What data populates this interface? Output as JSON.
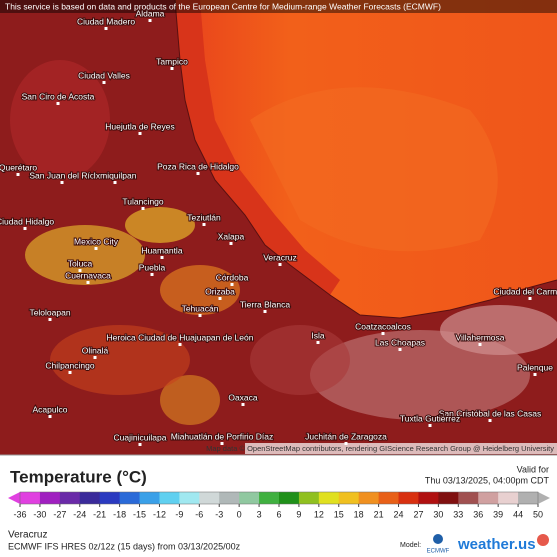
{
  "attribution": "This service is based on data and products of the European Centre for Medium-range Weather Forecasts (ECMWF)",
  "map_credit": "Map data © OpenStreetMap contributors, rendering GIScience Research Group @ Heidelberg University",
  "map_labels": [
    "Aldama",
    "Ciudad Madero",
    "Tampico",
    "Ciudad Valles",
    "San Ciro de Acosta",
    "Huejutla de Reyes",
    "Poza Rica de Hidalgo",
    "Querétaro",
    "San Juan del Río",
    "Ixmiquilpan",
    "Tulancingo",
    "Teziutlán",
    "Ciudad Hidalgo",
    "Xalapa",
    "Mexico City",
    "Huamantla",
    "Veracruz",
    "Toluca",
    "Cuernavaca",
    "Puebla",
    "Córdoba",
    "Orizaba",
    "Tierra Blanca",
    "Tehuacán",
    "Coatzacoalcos",
    "Ciudad del Carmen",
    "Teloloapan",
    "Heroica Ciudad de Huajuapan de León",
    "Isla",
    "Las Choapas",
    "Villahermosa",
    "Olinalá",
    "Palenque",
    "Chilpancingo",
    "Oaxaca",
    "Acapulco",
    "San Cristóbal de las Casas",
    "Tuxtla Gutiérrez",
    "Miahuatlán de Porfirio Díaz",
    "Juchitán de Zaragoza",
    "Cuajinicuilapa"
  ],
  "legend": {
    "title": "Temperature (°C)",
    "valid_label": "Valid for",
    "valid_time": "Thu 03/13/2025, 04:00pm CDT",
    "ticks": [
      -36,
      -30,
      -27,
      -24,
      -21,
      -18,
      -15,
      -12,
      -9,
      -6,
      -3,
      0,
      3,
      6,
      9,
      12,
      15,
      18,
      21,
      24,
      27,
      30,
      33,
      36,
      39,
      44,
      50
    ],
    "colors": [
      "#e040e0",
      "#a020c0",
      "#6a2aa8",
      "#3a2a9a",
      "#2a3ac0",
      "#2a6ad8",
      "#3aa0e8",
      "#60d0f0",
      "#a0e8f0",
      "#d0d8d8",
      "#b0b8b8",
      "#90c8a0",
      "#40b040",
      "#20901a",
      "#90c020",
      "#e0e020",
      "#f0c020",
      "#f09020",
      "#e86018",
      "#d83010",
      "#b01010",
      "#801010",
      "#a05050",
      "#d0a0a0",
      "#e8d0d0",
      "#b0b0b0"
    ]
  },
  "footer": {
    "location": "Veracruz",
    "run": "ECMWF IFS HRES 0z/12z (15 days) from 03/13/2025/00z",
    "model_label": "Model:",
    "model": "ECMWF",
    "brand": "weather.us"
  }
}
